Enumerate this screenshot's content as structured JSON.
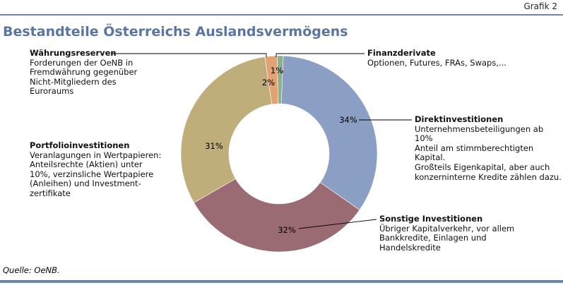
{
  "header": {
    "figure_label": "Grafik 2"
  },
  "source": "Quelle: OeNB.",
  "colors": {
    "rule": "#6b86ad",
    "title": "#5a76a0"
  },
  "chart_data": {
    "type": "pie",
    "donut": true,
    "title": "Bestandteile Österreichs Auslandsvermögens",
    "legend": "none",
    "slices": [
      {
        "label": "Direktinvestitionen",
        "value": 34,
        "value_label": "34%",
        "color": "#8a9fc3",
        "description": "Unternehmensbeteiligungen ab 10%\nAnteil am stimmberechtigten Kapital.\nGroßteils Eigenkapital, aber auch\nkonzerninterne Kredite zählen dazu."
      },
      {
        "label": "Sonstige Investitionen",
        "value": 32,
        "value_label": "32%",
        "color": "#9b6b73",
        "description": "Übriger Kapitalverkehr, vor allem\nBankkredite, Einlagen und\nHandelskredite"
      },
      {
        "label": "Portfolioinvestitionen",
        "value": 31,
        "value_label": "31%",
        "color": "#bfae7a",
        "description": "Veranlagungen in Wertpapieren:\nAnteilsrechte (Aktien) unter\n10%, verzinsliche Wertpapiere\n(Anleihen) und Investment-\nzertifikate"
      },
      {
        "label": "Währungsreserven",
        "value": 2,
        "value_label": "2%",
        "color": "#e2a273",
        "description": "Forderungen der OeNB in\nFremdwährung gegenüber\nNicht-Mitgliedern des\nEuroraums"
      },
      {
        "label": "Finanzderivate",
        "value": 1,
        "value_label": "1%",
        "color": "#8fb08a",
        "description": "Optionen, Futures, FRAs, Swaps,..."
      }
    ]
  }
}
